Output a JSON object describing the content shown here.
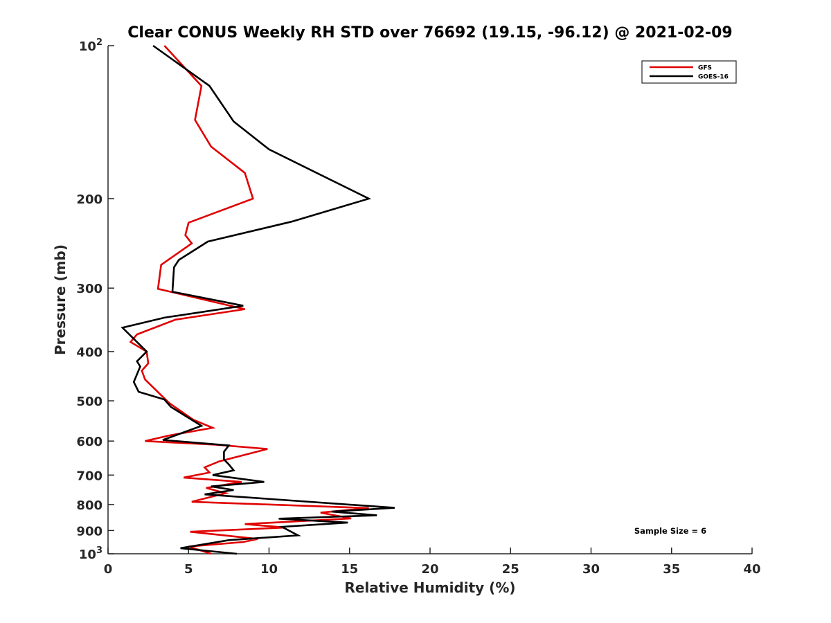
{
  "chart_data": {
    "type": "line",
    "title": "Clear CONUS Weekly RH STD over 76692 (19.15, -96.12) @ 2021-02-09",
    "xlabel": "Relative Humidity (%)",
    "ylabel": "Pressure (mb)",
    "xlim": [
      0,
      40
    ],
    "ylim": [
      100,
      1000
    ],
    "yscale": "log",
    "yreversed": true,
    "grid": false,
    "xticks": [
      0,
      5,
      10,
      15,
      20,
      25,
      30,
      35,
      40
    ],
    "xtick_labels": [
      "0",
      "5",
      "10",
      "15",
      "20",
      "25",
      "30",
      "35",
      "40"
    ],
    "yticks": [
      100,
      200,
      300,
      400,
      500,
      600,
      700,
      800,
      900,
      1000
    ],
    "ytick_labels": [
      {
        "base": "10",
        "exp": "2"
      },
      {
        "text": "200"
      },
      {
        "text": "300"
      },
      {
        "text": "400"
      },
      {
        "text": "500"
      },
      {
        "text": "600"
      },
      {
        "text": "700"
      },
      {
        "text": "800"
      },
      {
        "text": "900"
      },
      {
        "base": "10",
        "exp": "3"
      }
    ],
    "legend": {
      "position": "top-right",
      "entries": [
        "GFS",
        "GOES-16"
      ]
    },
    "annotation": "Sample Size = 6",
    "series": [
      {
        "name": "GFS",
        "color": "#e00000",
        "points": [
          [
            3.5,
            100
          ],
          [
            5.8,
            120
          ],
          [
            5.4,
            140
          ],
          [
            6.4,
            158
          ],
          [
            8.5,
            178
          ],
          [
            9.0,
            200
          ],
          [
            5.0,
            223
          ],
          [
            4.8,
            236
          ],
          [
            5.2,
            245
          ],
          [
            3.3,
            270
          ],
          [
            3.1,
            301
          ],
          [
            8.5,
            330
          ],
          [
            4.2,
            346
          ],
          [
            1.8,
            370
          ],
          [
            1.4,
            383
          ],
          [
            2.4,
            400
          ],
          [
            2.5,
            422
          ],
          [
            2.1,
            436
          ],
          [
            2.3,
            454
          ],
          [
            3.8,
            505
          ],
          [
            5.3,
            545
          ],
          [
            6.5,
            565
          ],
          [
            3.8,
            585
          ],
          [
            2.3,
            600
          ],
          [
            6.7,
            610
          ],
          [
            9.9,
            622
          ],
          [
            6.9,
            658
          ],
          [
            6.0,
            676
          ],
          [
            6.3,
            692
          ],
          [
            4.7,
            708
          ],
          [
            8.3,
            722
          ],
          [
            6.1,
            742
          ],
          [
            7.3,
            760
          ],
          [
            5.2,
            790
          ],
          [
            16.2,
            813
          ],
          [
            13.2,
            830
          ],
          [
            15.1,
            852
          ],
          [
            8.5,
            874
          ],
          [
            11.0,
            888
          ],
          [
            5.1,
            905
          ],
          [
            9.3,
            935
          ],
          [
            8.4,
            948
          ],
          [
            5.0,
            968
          ],
          [
            6.4,
            1000
          ]
        ]
      },
      {
        "name": "GOES-16",
        "color": "#000000",
        "points": [
          [
            2.8,
            100
          ],
          [
            6.3,
            120
          ],
          [
            7.8,
            141
          ],
          [
            10.0,
            160
          ],
          [
            16.2,
            200
          ],
          [
            11.4,
            222
          ],
          [
            6.2,
            243
          ],
          [
            4.4,
            264
          ],
          [
            4.1,
            273
          ],
          [
            4.0,
            305
          ],
          [
            8.4,
            325
          ],
          [
            3.5,
            343
          ],
          [
            0.9,
            359
          ],
          [
            2.4,
            400
          ],
          [
            1.8,
            418
          ],
          [
            2.0,
            428
          ],
          [
            1.6,
            459
          ],
          [
            1.9,
            480
          ],
          [
            3.5,
            497
          ],
          [
            3.9,
            514
          ],
          [
            5.8,
            560
          ],
          [
            3.4,
            597
          ],
          [
            7.5,
            612
          ],
          [
            7.2,
            630
          ],
          [
            7.2,
            652
          ],
          [
            7.5,
            667
          ],
          [
            7.8,
            685
          ],
          [
            6.5,
            700
          ],
          [
            9.7,
            722
          ],
          [
            6.4,
            737
          ],
          [
            7.8,
            749
          ],
          [
            6.0,
            764
          ],
          [
            17.8,
            812
          ],
          [
            13.9,
            826
          ],
          [
            16.7,
            840
          ],
          [
            10.6,
            853
          ],
          [
            14.9,
            868
          ],
          [
            10.8,
            885
          ],
          [
            11.8,
            920
          ],
          [
            7.5,
            940
          ],
          [
            4.5,
            975
          ],
          [
            8.0,
            1000
          ]
        ]
      }
    ]
  }
}
